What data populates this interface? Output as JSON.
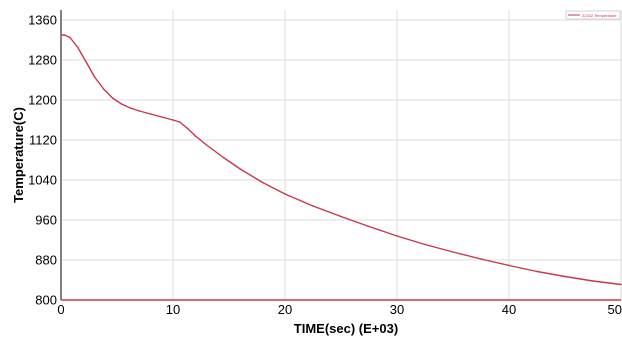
{
  "chart_data": {
    "type": "line",
    "title": "",
    "xlabel": "TIME(sec) (E+03)",
    "ylabel": "Temperature(C)",
    "xlim": [
      0,
      50
    ],
    "ylim": [
      800,
      1380
    ],
    "xticks": [
      0,
      10,
      20,
      30,
      40,
      50
    ],
    "yticks": [
      800,
      880,
      960,
      1040,
      1120,
      1200,
      1280,
      1360
    ],
    "grid": true,
    "legend_position": "top-right",
    "series": [
      {
        "name": "22342 Temperature",
        "color": "#c8384a",
        "x": [
          0,
          0.3,
          0.8,
          1.5,
          2.2,
          3.0,
          3.8,
          4.6,
          5.4,
          6.2,
          7.0,
          8.0,
          9.0,
          10.0,
          10.6,
          11.3,
          12.0,
          13.0,
          14.5,
          16.0,
          18.0,
          20.0,
          22.5,
          25.0,
          27.5,
          30.0,
          32.5,
          35.0,
          37.5,
          40.0,
          42.5,
          45.0,
          47.5,
          50.0
        ],
        "y": [
          1330,
          1330,
          1325,
          1305,
          1278,
          1246,
          1222,
          1204,
          1192,
          1184,
          1178,
          1172,
          1166,
          1160,
          1156,
          1143,
          1128,
          1110,
          1085,
          1062,
          1035,
          1012,
          988,
          967,
          947,
          928,
          911,
          896,
          882,
          869,
          857,
          847,
          838,
          831
        ]
      }
    ],
    "colors": {
      "axis": "#000000",
      "grid": "#dedede",
      "baseline": "#c8384a"
    }
  }
}
